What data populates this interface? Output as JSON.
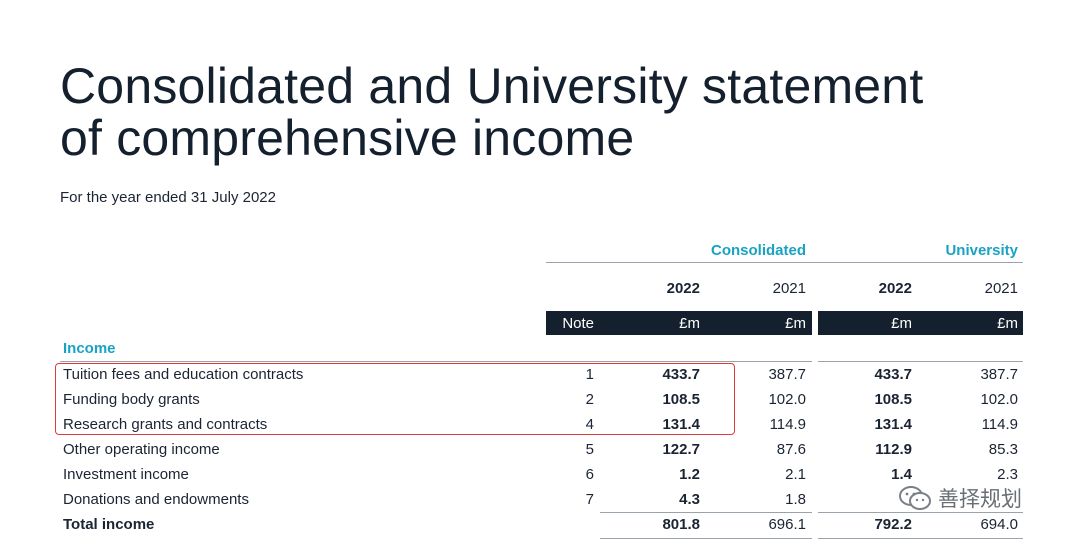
{
  "title_line1": "Consolidated and University statement",
  "title_line2": "of comprehensive income",
  "subtitle": "For the year ended 31 July 2022",
  "groups": {
    "consolidated": "Consolidated",
    "university": "University"
  },
  "years": {
    "c2022": "2022",
    "c2021": "2021",
    "u2022": "2022",
    "u2021": "2021"
  },
  "units": {
    "note": "Note",
    "c2022": "£m",
    "c2021": "£m",
    "u2022": "£m",
    "u2021": "£m"
  },
  "section_income": "Income",
  "rows": [
    {
      "label": "Tuition fees and education contracts",
      "note": "1",
      "c2022": "433.7",
      "c2021": "387.7",
      "u2022": "433.7",
      "u2021": "387.7"
    },
    {
      "label": "Funding body grants",
      "note": "2",
      "c2022": "108.5",
      "c2021": "102.0",
      "u2022": "108.5",
      "u2021": "102.0"
    },
    {
      "label": "Research grants and contracts",
      "note": "4",
      "c2022": "131.4",
      "c2021": "114.9",
      "u2022": "131.4",
      "u2021": "114.9"
    },
    {
      "label": "Other operating income",
      "note": "5",
      "c2022": "122.7",
      "c2021": "87.6",
      "u2022": "112.9",
      "u2021": "85.3"
    },
    {
      "label": "Investment income",
      "note": "6",
      "c2022": "1.2",
      "c2021": "2.1",
      "u2022": "1.4",
      "u2021": "2.3"
    },
    {
      "label": "Donations and endowments",
      "note": "7",
      "c2022": "4.3",
      "c2021": "1.8",
      "u2022": "",
      "u2021": ""
    }
  ],
  "total": {
    "label": "Total income",
    "c2022": "801.8",
    "c2021": "696.1",
    "u2022": "792.2",
    "u2021": "694.0"
  },
  "watermark": "善择规划",
  "colors": {
    "accent": "#19a3c3",
    "navy": "#14202e",
    "highlight": "#e03b3b"
  }
}
